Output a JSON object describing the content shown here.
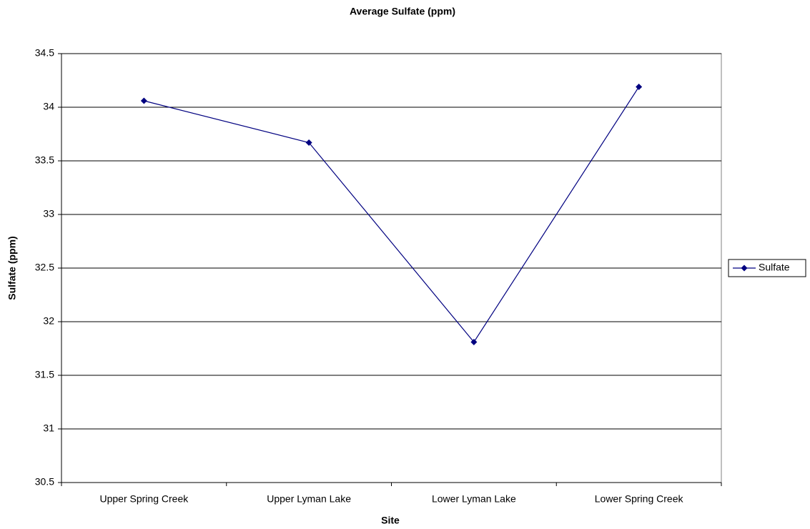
{
  "chart_data": {
    "type": "line",
    "title": "Average Sulfate (ppm)",
    "x_label": "Site",
    "y_label": "Sulfate (ppm)",
    "categories": [
      "Upper Spring Creek",
      "Upper Lyman Lake",
      "Lower Lyman Lake",
      "Lower Spring Creek"
    ],
    "series": [
      {
        "name": "Sulfate",
        "color": "#000080",
        "values": [
          34.06,
          33.67,
          31.81,
          34.19
        ]
      }
    ],
    "ylim": [
      30.5,
      34.5
    ],
    "yticks": [
      30.5,
      31,
      31.5,
      32,
      32.5,
      33,
      33.5,
      34,
      34.5
    ],
    "grid": true,
    "legend": "right"
  }
}
